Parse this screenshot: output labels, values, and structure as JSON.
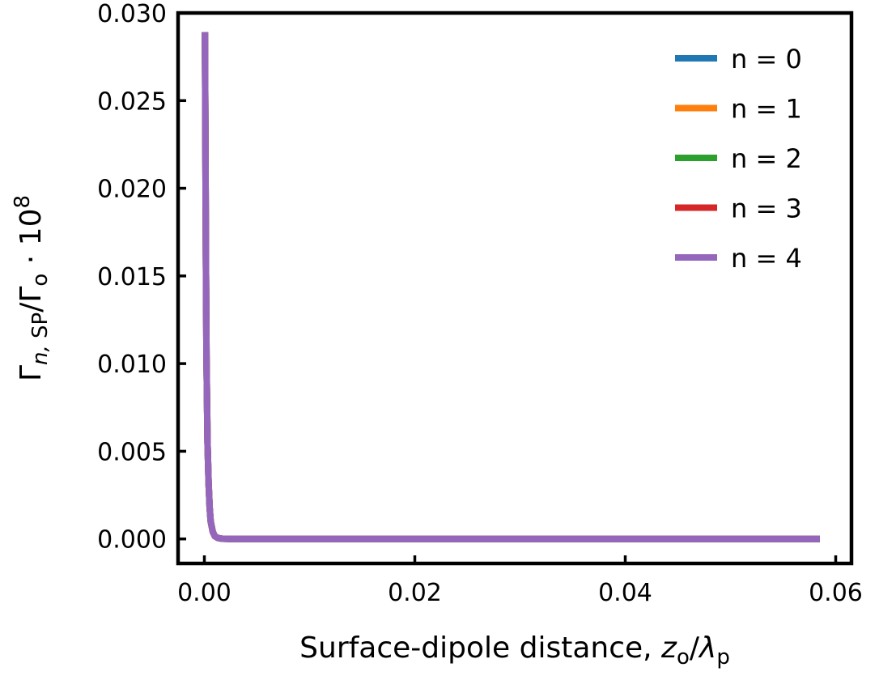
{
  "chart_data": {
    "type": "line",
    "title": "",
    "xlabel": {
      "text": "Surface-dipole distance, ",
      "var": "z",
      "var_sub": "o",
      "slash": "/",
      "var2": "λ",
      "var2_sub": "p"
    },
    "ylabel": {
      "gamma": "Γ",
      "sub": "n,",
      "sub2": " SP",
      "slash": "/Γ",
      "sub3": "o",
      "suffix": " · 10",
      "sup": "8"
    },
    "xlim": [
      -0.0025,
      0.0615
    ],
    "ylim": [
      -0.0014,
      0.03
    ],
    "xticks": [
      0.0,
      0.02,
      0.04,
      0.06
    ],
    "xtick_labels": [
      "0.00",
      "0.02",
      "0.04",
      "0.06"
    ],
    "yticks": [
      0.0,
      0.005,
      0.01,
      0.015,
      0.02,
      0.025,
      0.03
    ],
    "ytick_labels": [
      "0.000",
      "0.005",
      "0.010",
      "0.015",
      "0.020",
      "0.025",
      "0.030"
    ],
    "grid": false,
    "legend_position": "top-right",
    "series": [
      {
        "name": "n = 0",
        "color": "#1f77b4"
      },
      {
        "name": "n = 1",
        "color": "#ff7f0e"
      },
      {
        "name": "n = 2",
        "color": "#2ca02c"
      },
      {
        "name": "n = 3",
        "color": "#d62728"
      },
      {
        "name": "n = 4",
        "color": "#9467bd"
      }
    ],
    "x": [
      5e-05,
      0.0001,
      0.00015,
      0.0002,
      0.0003,
      0.0004,
      0.0005,
      0.0006,
      0.0008,
      0.001,
      0.0013,
      0.0017,
      0.0025,
      0.005,
      0.01,
      0.02,
      0.03,
      0.04,
      0.05,
      0.0585
    ],
    "y": [
      0.0289,
      0.0225,
      0.016,
      0.0105,
      0.0055,
      0.0032,
      0.0018,
      0.001,
      0.0004,
      0.00015,
      5e-05,
      1e-05,
      0.0,
      0.0,
      0.0,
      0.0,
      0.0,
      0.0,
      0.0,
      0.0
    ]
  }
}
